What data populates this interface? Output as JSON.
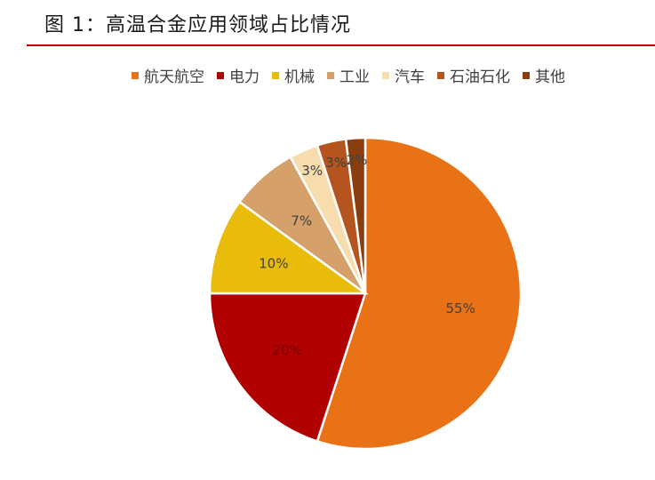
{
  "figure": {
    "title": "图 1：高温合金应用领域占比情况"
  },
  "colors": {
    "title_rule": "#c00000"
  },
  "chart_data": {
    "type": "pie",
    "title": "",
    "legend_position": "top",
    "slices": [
      {
        "label": "航天航空",
        "value": 55,
        "display": "55%",
        "color": "#E97116",
        "label_color": "#404040"
      },
      {
        "label": "电力",
        "value": 20,
        "display": "20%",
        "color": "#B00000",
        "label_color": "#7a0000"
      },
      {
        "label": "机械",
        "value": 10,
        "display": "10%",
        "color": "#E9BC0C",
        "label_color": "#404040"
      },
      {
        "label": "工业",
        "value": 7,
        "display": "7%",
        "color": "#D5A06A",
        "label_color": "#404040"
      },
      {
        "label": "汽车",
        "value": 3,
        "display": "3%",
        "color": "#F7DDAE",
        "label_color": "#404040"
      },
      {
        "label": "石油石化",
        "value": 3,
        "display": "3%",
        "color": "#B5541E",
        "label_color": "#404040"
      },
      {
        "label": "其他",
        "value": 2,
        "display": "2%",
        "color": "#8A3E0E",
        "label_color": "#404040"
      }
    ]
  }
}
